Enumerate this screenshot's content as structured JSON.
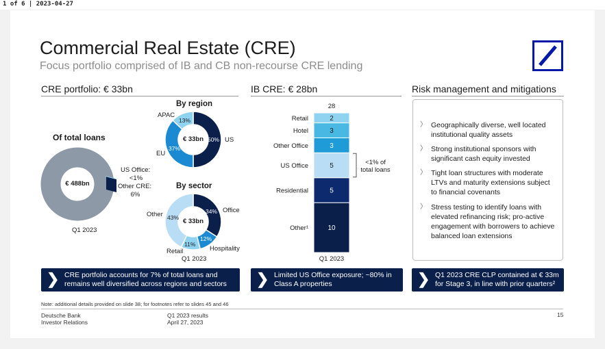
{
  "viewer": {
    "page_indicator": "1 of 6 | 2023-04-27"
  },
  "header": {
    "title": "Commercial Real Estate (CRE)",
    "subtitle": "Focus portfolio comprised of IB and CB non-recourse CRE lending"
  },
  "colors": {
    "navy": "#0b1f4b",
    "dark_blue": "#0d2a6e",
    "mid_blue": "#1f4fbf",
    "blue": "#1b8ad3",
    "light_blue": "#8fd3f0",
    "pale_blue": "#b9ddf4",
    "grey": "#8d99a6",
    "logo_blue": "#0018a8"
  },
  "left": {
    "section_title": "CRE portfolio: € 33bn",
    "of_total_loans": {
      "heading": "Of total loans",
      "center": "€ 488bn",
      "us_office_label": "US Office:",
      "us_office_value": "<1%",
      "other_cre_label": "Other CRE:",
      "other_cre_value": "6%",
      "period": "Q1 2023"
    },
    "by_region": {
      "heading": "By region",
      "center": "€ 33bn",
      "slices": [
        {
          "label": "US",
          "pct": "50%",
          "value": 50
        },
        {
          "label": "EU",
          "pct": "37%",
          "value": 37
        },
        {
          "label": "APAC",
          "pct": "13%",
          "value": 13
        }
      ]
    },
    "by_sector": {
      "heading": "By sector",
      "center": "€ 33bn",
      "slices": [
        {
          "label": "Office",
          "pct": "34%",
          "value": 34
        },
        {
          "label": "Hospitality",
          "pct": "12%",
          "value": 12
        },
        {
          "label": "Retail",
          "pct": "11%",
          "value": 11
        },
        {
          "label": "Other",
          "pct": "43%",
          "value": 43
        }
      ],
      "period": "Q1 2023"
    }
  },
  "middle": {
    "section_title": "IB CRE: € 28bn",
    "total": "28",
    "bracket_text_1": "<1% of",
    "bracket_text_2": "total loans",
    "period": "Q1 2023"
  },
  "chart_data": {
    "type": "bar",
    "title": "IB CRE: € 28bn",
    "stacked": true,
    "categories": [
      "Q1 2023"
    ],
    "series": [
      {
        "name": "Other¹",
        "values": [
          10
        ]
      },
      {
        "name": "Residential",
        "values": [
          5
        ]
      },
      {
        "name": "US Office",
        "values": [
          5
        ]
      },
      {
        "name": "Other Office",
        "values": [
          3
        ]
      },
      {
        "name": "Hotel",
        "values": [
          3
        ]
      },
      {
        "name": "Retail",
        "values": [
          2
        ]
      }
    ],
    "total_label": "28"
  },
  "right": {
    "section_title": "Risk management and mitigations",
    "items": [
      "Geographically diverse, well located institutional quality assets",
      "Strong institutional sponsors with significant cash equity invested",
      "Tight loan structures with moderate LTVs and maturity extensions subject to financial covenants",
      "Stress testing to identify loans with elevated refinancing risk; pro-active engagement with borrowers to achieve balanced loan extensions"
    ]
  },
  "banners": [
    {
      "line1": "CRE portfolio accounts for 7% of total loans and",
      "line2": "remains well diversified across regions and sectors"
    },
    {
      "line1": "Limited US Office exposure; ~80% in",
      "line2": "Class A properties"
    },
    {
      "line1": "Q1 2023 CRE CLP contained at € 33m",
      "line2": "for Stage 3, in line with prior quarters²"
    }
  ],
  "chevron": "❯",
  "risk_chevron": "〉",
  "footer": {
    "note": "Note: additional details provided on slide 38; for footnotes refer to slides 45 and 46",
    "company": "Deutsche Bank",
    "department": "Investor Relations",
    "report": "Q1 2023 results",
    "date": "April 27, 2023",
    "page": "15"
  }
}
